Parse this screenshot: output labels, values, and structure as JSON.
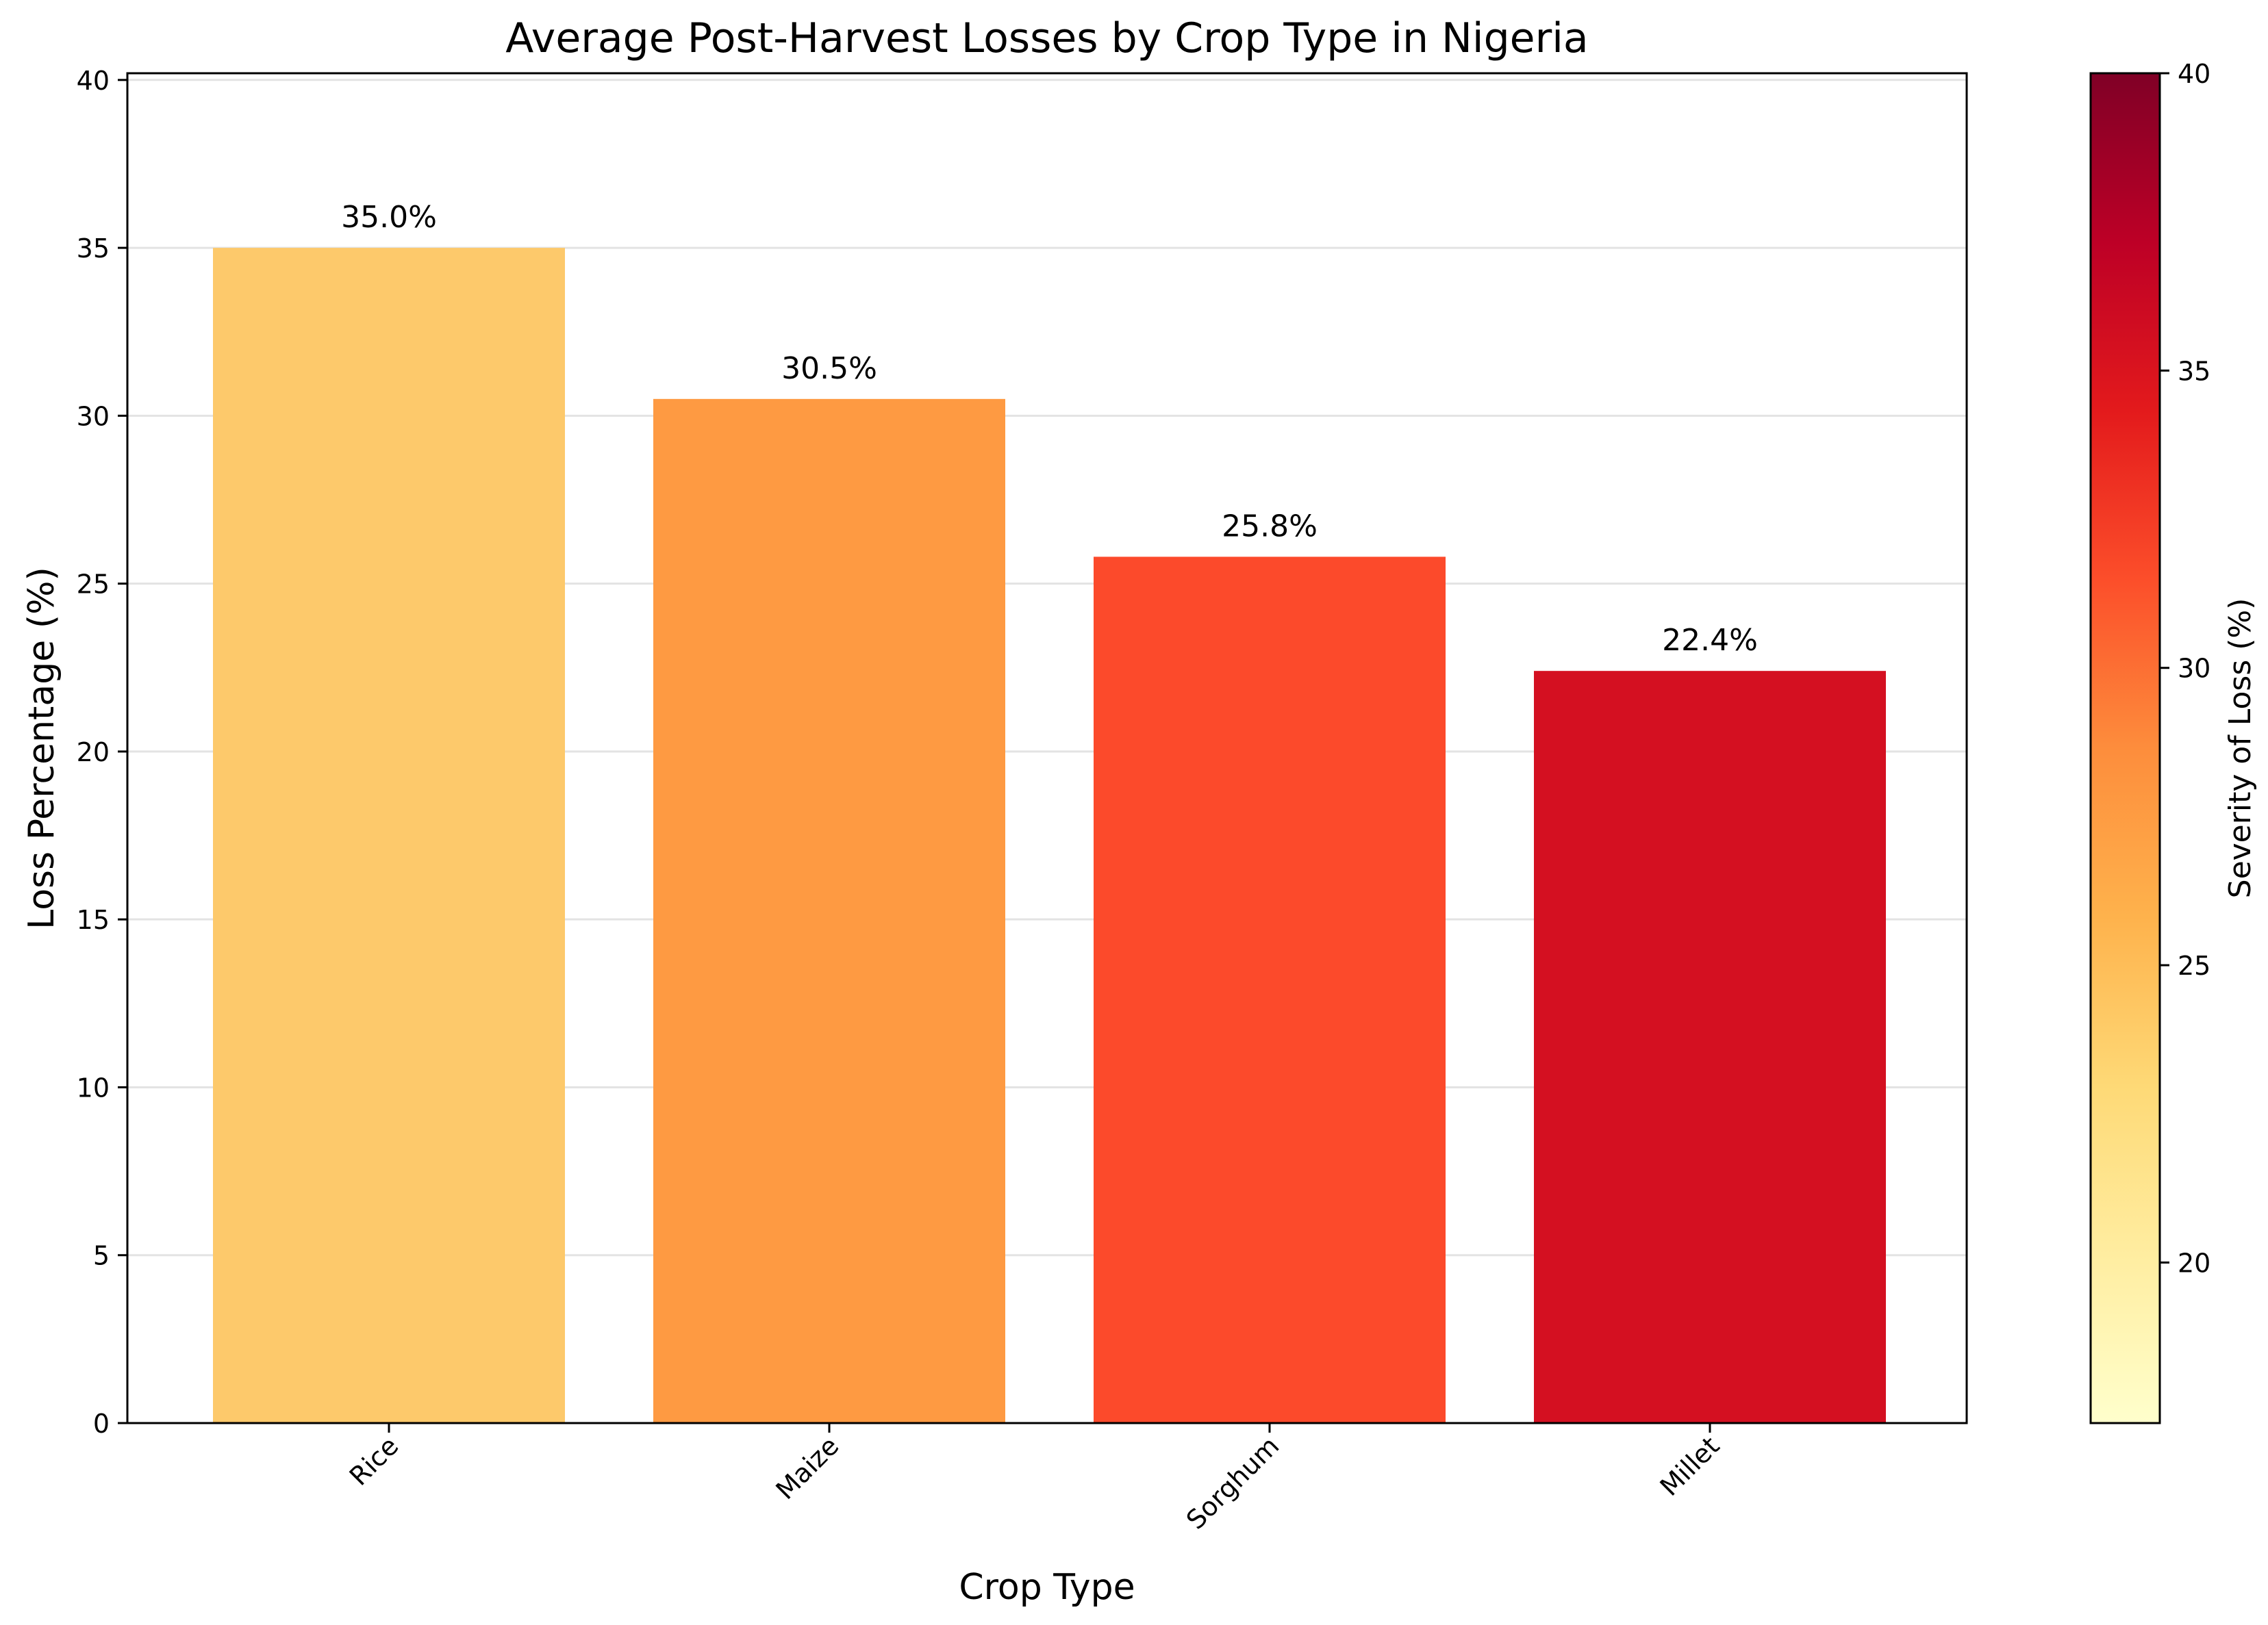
{
  "chart_data": {
    "type": "bar",
    "title": "Average Post-Harvest Losses by Crop Type in Nigeria",
    "xlabel": "Crop Type",
    "ylabel": "Loss Percentage (%)",
    "categories": [
      "Rice",
      "Maize",
      "Sorghum",
      "Millet"
    ],
    "values": [
      35.0,
      30.5,
      25.8,
      22.4
    ],
    "data_labels": [
      "35.0%",
      "30.5%",
      "25.8%",
      "22.4%"
    ],
    "bar_colors": [
      "#fdc96b",
      "#fe9a42",
      "#fc4a2b",
      "#d41021"
    ],
    "ylim": [
      0,
      40.2
    ],
    "yticks": [
      0,
      5,
      10,
      15,
      20,
      25,
      30,
      35,
      40
    ],
    "grid": "horizontal",
    "xtick_rotation": "45 degrees",
    "colorbar": {
      "label": "Severity of Loss (%)",
      "range": [
        17.3,
        40
      ],
      "ticks": [
        20,
        25,
        30,
        35,
        40
      ],
      "colormap": "YlOrRd",
      "stops": [
        "#ffffcc",
        "#ffeda0",
        "#fed976",
        "#feb24c",
        "#fd8d3c",
        "#fc4e2a",
        "#e31a1c",
        "#bd0026",
        "#800026"
      ]
    }
  }
}
